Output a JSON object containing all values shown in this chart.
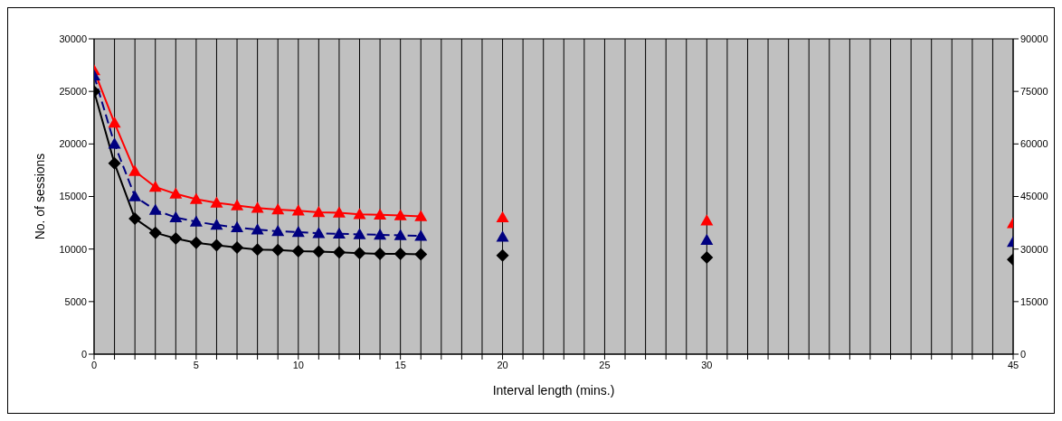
{
  "chart_data": {
    "type": "line",
    "xlabel": "Interval length (mins.)",
    "ylabel": "No. of sessions",
    "x": [
      0,
      1,
      2,
      3,
      4,
      5,
      6,
      7,
      8,
      9,
      10,
      11,
      12,
      13,
      14,
      15,
      16,
      18,
      20,
      25,
      30,
      40,
      45
    ],
    "series": [
      {
        "color": "#ff0000",
        "marker": "triangle",
        "line_style": "solid",
        "values": [
          27000,
          22000,
          17400,
          15900,
          15250,
          14750,
          14400,
          14150,
          13900,
          13750,
          13650,
          13500,
          13450,
          13300,
          13250,
          13200,
          13100,
          null,
          13000,
          null,
          12700,
          null,
          12450
        ]
      },
      {
        "color": "#000080",
        "marker": "triangle",
        "line_style": "dashed",
        "values": [
          26500,
          20000,
          15000,
          13700,
          13000,
          12600,
          12300,
          12050,
          11850,
          11700,
          11600,
          11500,
          11450,
          11400,
          11350,
          11300,
          11250,
          null,
          11150,
          null,
          10850,
          null,
          10650
        ]
      },
      {
        "color": "#000000",
        "marker": "diamond",
        "line_style": "solid",
        "values": [
          25000,
          18150,
          12900,
          11550,
          11000,
          10600,
          10350,
          10150,
          9950,
          9900,
          9800,
          9750,
          9700,
          9600,
          9550,
          9550,
          9500,
          null,
          9400,
          null,
          9200,
          null,
          9000
        ]
      }
    ],
    "xlim": [
      0,
      45
    ],
    "xticks": [
      0,
      {
        "value": 1,
        "label": null
      },
      {
        "value": 2,
        "label": null
      },
      {
        "value": 3,
        "label": null
      },
      {
        "value": 4,
        "label": null
      },
      5,
      {
        "value": 6,
        "label": null
      },
      {
        "value": 7,
        "label": null
      },
      {
        "value": 8,
        "label": null
      },
      {
        "value": 9,
        "label": null
      },
      10,
      {
        "value": 11,
        "label": null
      },
      {
        "value": 12,
        "label": null
      },
      {
        "value": 13,
        "label": null
      },
      {
        "value": 14,
        "label": null
      },
      15,
      {
        "value": 16,
        "label": null
      },
      {
        "value": 17,
        "label": null
      },
      {
        "value": 18,
        "label": null
      },
      {
        "value": 19,
        "label": null
      },
      20,
      {
        "value": 21,
        "label": null
      },
      {
        "value": 22,
        "label": null
      },
      {
        "value": 23,
        "label": null
      },
      {
        "value": 24,
        "label": null
      },
      25,
      {
        "value": 26,
        "label": null
      },
      {
        "value": 27,
        "label": null
      },
      {
        "value": 28,
        "label": null
      },
      {
        "value": 29,
        "label": null
      },
      30,
      {
        "value": 31,
        "label": null
      },
      {
        "value": 32,
        "label": null
      },
      {
        "value": 33,
        "label": null
      },
      {
        "value": 34,
        "label": null
      },
      {
        "value": 35,
        "label": null
      },
      {
        "value": 36,
        "label": null
      },
      {
        "value": 37,
        "label": null
      },
      {
        "value": 38,
        "label": null
      },
      {
        "value": 39,
        "label": null
      },
      {
        "value": 40,
        "label": null
      },
      {
        "value": 41,
        "label": null
      },
      {
        "value": 42,
        "label": null
      },
      {
        "value": 43,
        "label": null
      },
      {
        "value": 44,
        "label": null
      },
      45
    ],
    "ylim": [
      0,
      30000
    ],
    "yticks": [
      0,
      5000,
      10000,
      15000,
      20000,
      25000,
      30000
    ],
    "y2lim": [
      0,
      90000
    ],
    "y2ticks": [
      0,
      15000,
      30000,
      45000,
      60000,
      75000,
      90000
    ],
    "grid": true,
    "legend": false
  }
}
